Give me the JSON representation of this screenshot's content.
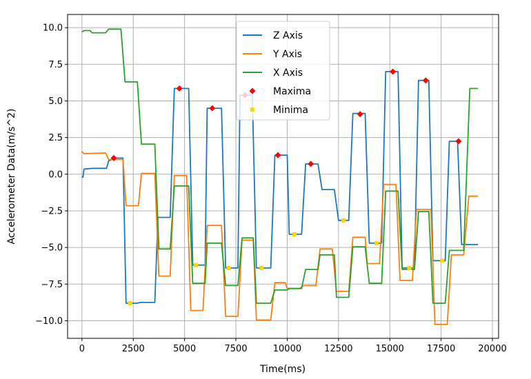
{
  "chart_data": {
    "type": "line",
    "title": "",
    "xlabel": "Time(ms)",
    "ylabel": "Accelerometer Data(m/s^2)",
    "xlim": [
      -700,
      20300
    ],
    "ylim": [
      -11.2,
      10.9
    ],
    "grid": true,
    "legend_position": "top-center",
    "x_ticks": [
      0,
      2500,
      5000,
      7500,
      10000,
      12500,
      15000,
      17500,
      20000
    ],
    "x_tick_labels": [
      "0",
      "2500",
      "5000",
      "7500",
      "10000",
      "12500",
      "15000",
      "17500",
      "20000"
    ],
    "y_ticks": [
      -10.0,
      -7.5,
      -5.0,
      -2.5,
      0.0,
      2.5,
      5.0,
      7.5,
      10.0
    ],
    "y_tick_labels": [
      "−10.0",
      "−7.5",
      "−5.0",
      "−2.5",
      "0.0",
      "2.5",
      "5.0",
      "7.5",
      "10.0"
    ],
    "series": [
      {
        "name": "Z Axis",
        "color": "#1f77b4",
        "x": [
          0,
          50,
          100,
          500,
          1200,
          1300,
          1600,
          1700,
          2000,
          2150,
          2700,
          2850,
          3550,
          3700,
          4300,
          4500,
          5200,
          5400,
          6000,
          6100,
          6800,
          7000,
          7600,
          7700,
          8300,
          8500,
          9200,
          9400,
          10000,
          10100,
          10700,
          10900,
          11500,
          11700,
          12300,
          12500,
          13000,
          13200,
          13800,
          14000,
          14600,
          14800,
          15400,
          15600,
          16200,
          16400,
          16900,
          17100,
          17700,
          17900,
          18300,
          18500,
          19000,
          19100,
          19300
        ],
        "y": [
          -0.2,
          -0.2,
          0.35,
          0.4,
          0.4,
          0.9,
          1.1,
          1.1,
          1.1,
          -8.8,
          -8.8,
          -8.75,
          -8.75,
          -2.95,
          -2.95,
          5.85,
          5.85,
          -6.2,
          -6.2,
          4.5,
          4.5,
          -6.4,
          -6.4,
          5.4,
          5.4,
          -6.4,
          -6.4,
          1.3,
          1.3,
          -4.1,
          -4.1,
          0.7,
          0.7,
          -1.05,
          -1.05,
          -3.15,
          -3.15,
          4.15,
          4.15,
          -4.7,
          -4.7,
          7.0,
          7.0,
          -6.4,
          -6.4,
          6.4,
          6.4,
          -5.9,
          -5.9,
          2.25,
          2.25,
          -4.8,
          -4.8,
          -4.8,
          -4.8
        ]
      },
      {
        "name": "Y Axis",
        "color": "#ff7f0e",
        "x": [
          0,
          100,
          1150,
          1300,
          2000,
          2150,
          2750,
          2900,
          3550,
          3750,
          4300,
          4500,
          5100,
          5300,
          5900,
          6100,
          6800,
          7000,
          7600,
          7800,
          8350,
          8500,
          9200,
          9400,
          9900,
          10000,
          10600,
          10800,
          11400,
          11600,
          12200,
          12400,
          13000,
          13200,
          13800,
          13900,
          14500,
          14700,
          15300,
          15500,
          16100,
          16300,
          17000,
          17200,
          17800,
          18000,
          18600,
          18850,
          19000,
          19300
        ],
        "y": [
          1.55,
          1.4,
          1.45,
          1.0,
          1.0,
          -2.15,
          -2.15,
          0.05,
          0.05,
          -6.95,
          -6.95,
          -0.1,
          -0.1,
          -9.3,
          -9.3,
          -3.5,
          -3.5,
          -9.7,
          -9.7,
          -4.5,
          -4.5,
          -9.95,
          -9.95,
          -7.4,
          -7.4,
          -7.8,
          -7.8,
          -7.6,
          -7.6,
          -5.1,
          -5.1,
          -8.0,
          -8.0,
          -4.3,
          -4.3,
          -6.1,
          -6.1,
          -0.7,
          -0.7,
          -7.25,
          -7.25,
          -2.4,
          -2.4,
          -10.25,
          -10.25,
          -5.5,
          -5.5,
          -1.5,
          -1.5,
          -1.5
        ]
      },
      {
        "name": "X Axis",
        "color": "#2ca02c",
        "x": [
          0,
          100,
          400,
          500,
          1150,
          1300,
          1900,
          2100,
          2700,
          2900,
          3550,
          3750,
          4300,
          4500,
          5200,
          5400,
          6000,
          6100,
          6800,
          7000,
          7600,
          7800,
          8350,
          8500,
          9200,
          9400,
          10000,
          10100,
          10700,
          10900,
          11500,
          11600,
          12300,
          12400,
          13000,
          13200,
          13800,
          14000,
          14600,
          14800,
          15400,
          15600,
          16200,
          16400,
          16900,
          17100,
          17700,
          17900,
          18600,
          18900,
          19300
        ],
        "y": [
          9.7,
          9.8,
          9.8,
          9.65,
          9.65,
          9.9,
          9.9,
          6.3,
          6.3,
          2.05,
          2.05,
          -5.1,
          -5.1,
          -0.8,
          -0.8,
          -7.45,
          -7.45,
          -4.7,
          -4.7,
          -7.6,
          -7.6,
          -4.35,
          -4.35,
          -8.8,
          -8.8,
          -7.9,
          -7.9,
          -7.8,
          -7.8,
          -6.5,
          -6.5,
          -5.5,
          -5.5,
          -8.4,
          -8.4,
          -4.95,
          -4.95,
          -7.45,
          -7.45,
          -1.15,
          -1.15,
          -6.5,
          -6.5,
          -2.55,
          -2.55,
          -8.8,
          -8.8,
          -5.2,
          -5.2,
          5.85,
          5.85
        ]
      }
    ],
    "scatter_series": [
      {
        "name": "Maxima",
        "color": "#ff0000",
        "marker": "diamond",
        "x": [
          1550,
          4750,
          6350,
          7950,
          9550,
          11150,
          13550,
          15150,
          16750,
          18350
        ],
        "y": [
          1.1,
          5.85,
          4.5,
          5.4,
          1.3,
          0.7,
          4.1,
          7.0,
          6.4,
          2.25
        ]
      },
      {
        "name": "Minima",
        "color": "#ffd700",
        "marker": "square",
        "x": [
          2350,
          5550,
          7150,
          8750,
          10350,
          12750,
          14350,
          15950,
          17550
        ],
        "y": [
          -8.8,
          -6.2,
          -6.4,
          -6.4,
          -4.1,
          -3.15,
          -4.7,
          -6.4,
          -5.9
        ]
      }
    ]
  }
}
